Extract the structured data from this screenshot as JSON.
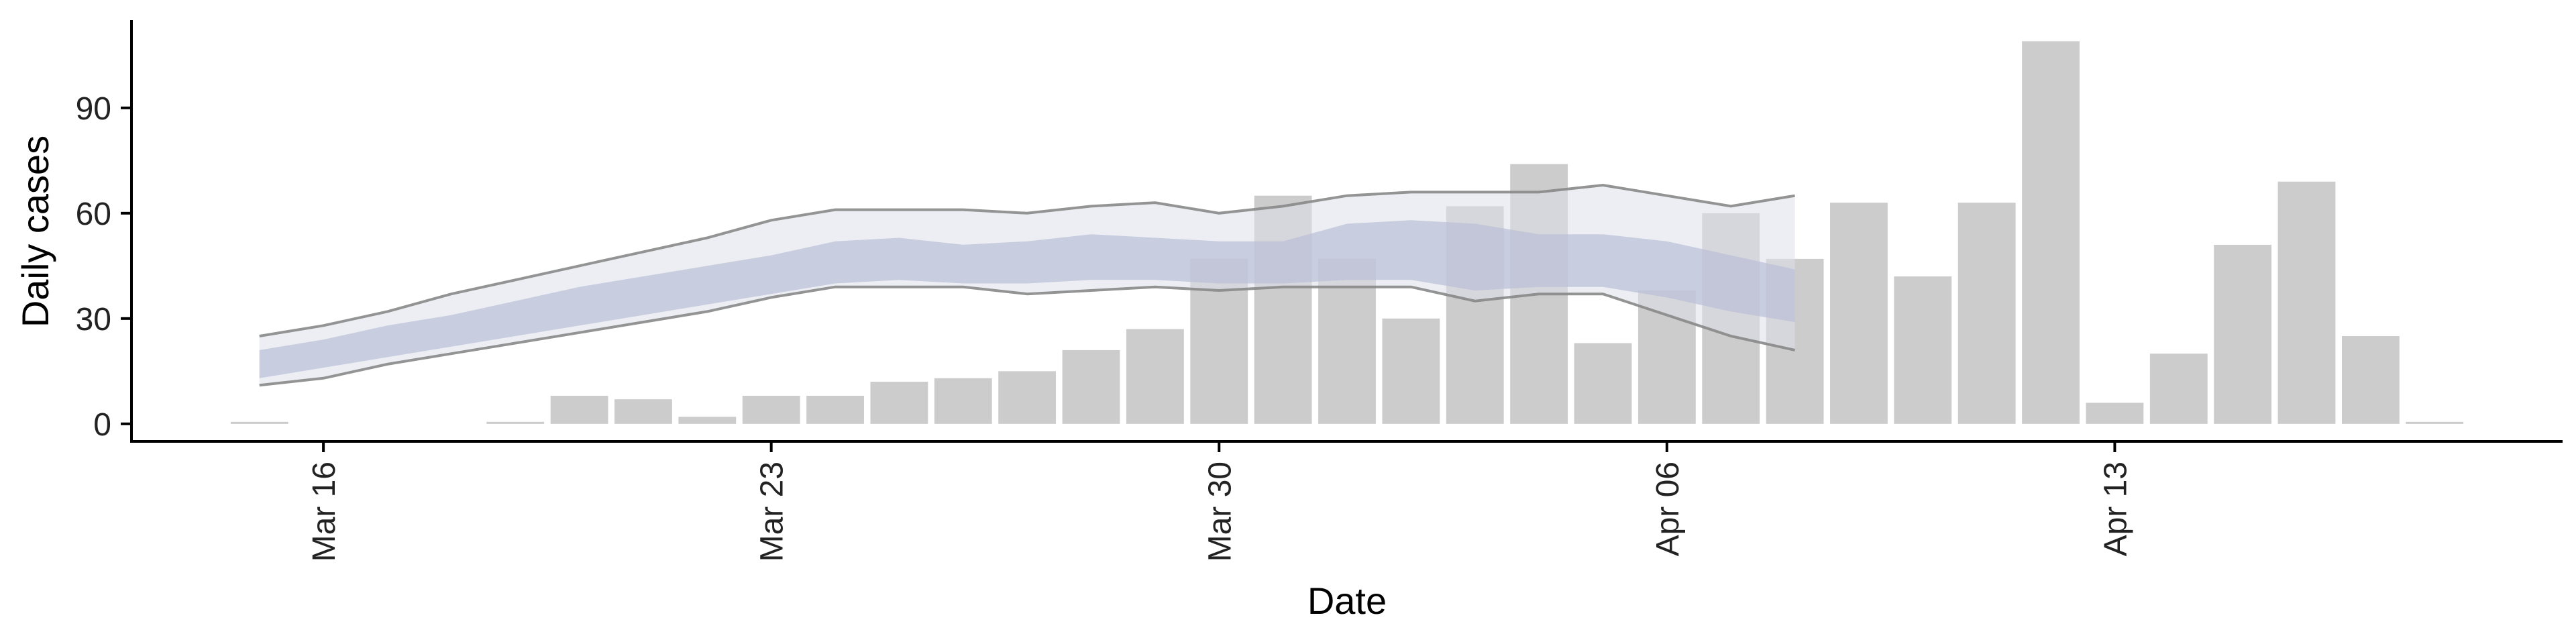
{
  "chart_data": {
    "type": "bar",
    "title": "",
    "xlabel": "Date",
    "ylabel": "Daily cases",
    "x_axis": {
      "type": "date",
      "range": [
        "2020-03-13",
        "2020-04-20"
      ],
      "ticks": [
        {
          "date": "2020-03-16",
          "label": "Mar 16"
        },
        {
          "date": "2020-03-23",
          "label": "Mar 23"
        },
        {
          "date": "2020-03-30",
          "label": "Mar 30"
        },
        {
          "date": "2020-04-06",
          "label": "Apr 06"
        },
        {
          "date": "2020-04-13",
          "label": "Apr 13"
        }
      ]
    },
    "y_axis": {
      "range": [
        -5,
        115
      ],
      "ticks": [
        0,
        30,
        60,
        90
      ]
    },
    "grid": false,
    "bars": {
      "color": "#cccccc",
      "x": [
        "2020-03-15",
        "2020-03-19",
        "2020-03-20",
        "2020-03-21",
        "2020-03-22",
        "2020-03-23",
        "2020-03-24",
        "2020-03-25",
        "2020-03-26",
        "2020-03-27",
        "2020-03-28",
        "2020-03-29",
        "2020-03-30",
        "2020-03-31",
        "2020-04-01",
        "2020-04-02",
        "2020-04-03",
        "2020-04-04",
        "2020-04-05",
        "2020-04-06",
        "2020-04-07",
        "2020-04-08",
        "2020-04-09",
        "2020-04-10",
        "2020-04-11",
        "2020-04-12",
        "2020-04-13",
        "2020-04-14",
        "2020-04-15",
        "2020-04-16",
        "2020-04-17",
        "2020-04-18"
      ],
      "values": [
        1,
        1,
        8,
        7,
        2,
        8,
        8,
        12,
        13,
        15,
        21,
        27,
        47,
        65,
        47,
        30,
        62,
        74,
        23,
        38,
        60,
        47,
        63,
        42,
        63,
        109,
        6,
        20,
        51,
        69,
        25,
        0
      ]
    },
    "bands": {
      "x": [
        "2020-03-15",
        "2020-03-16",
        "2020-03-17",
        "2020-03-18",
        "2020-03-19",
        "2020-03-20",
        "2020-03-21",
        "2020-03-22",
        "2020-03-23",
        "2020-03-24",
        "2020-03-25",
        "2020-03-26",
        "2020-03-27",
        "2020-03-28",
        "2020-03-29",
        "2020-03-30",
        "2020-03-31",
        "2020-04-01",
        "2020-04-02",
        "2020-04-03",
        "2020-04-04",
        "2020-04-05",
        "2020-04-06",
        "2020-04-07",
        "2020-04-08"
      ],
      "outer_color": "#dde0ea",
      "inner_color": "#b9bfd6",
      "line_color": "#888888",
      "outer_upper": [
        25,
        28,
        32,
        37,
        41,
        45,
        49,
        53,
        58,
        61,
        61,
        61,
        60,
        62,
        63,
        60,
        62,
        65,
        66,
        66,
        66,
        68,
        65,
        62,
        65
      ],
      "outer_lower": [
        11,
        13,
        17,
        20,
        23,
        26,
        29,
        32,
        36,
        39,
        39,
        39,
        37,
        38,
        39,
        38,
        39,
        39,
        39,
        35,
        37,
        37,
        31,
        25,
        21
      ],
      "inner_upper": [
        21,
        24,
        28,
        31,
        35,
        39,
        42,
        45,
        48,
        52,
        53,
        51,
        52,
        54,
        53,
        52,
        52,
        57,
        58,
        57,
        54,
        54,
        52,
        48,
        44
      ],
      "inner_lower": [
        13,
        16,
        19,
        22,
        25,
        28,
        31,
        34,
        37,
        40,
        41,
        40,
        40,
        41,
        41,
        40,
        40,
        41,
        41,
        38,
        39,
        39,
        36,
        32,
        29
      ]
    }
  }
}
